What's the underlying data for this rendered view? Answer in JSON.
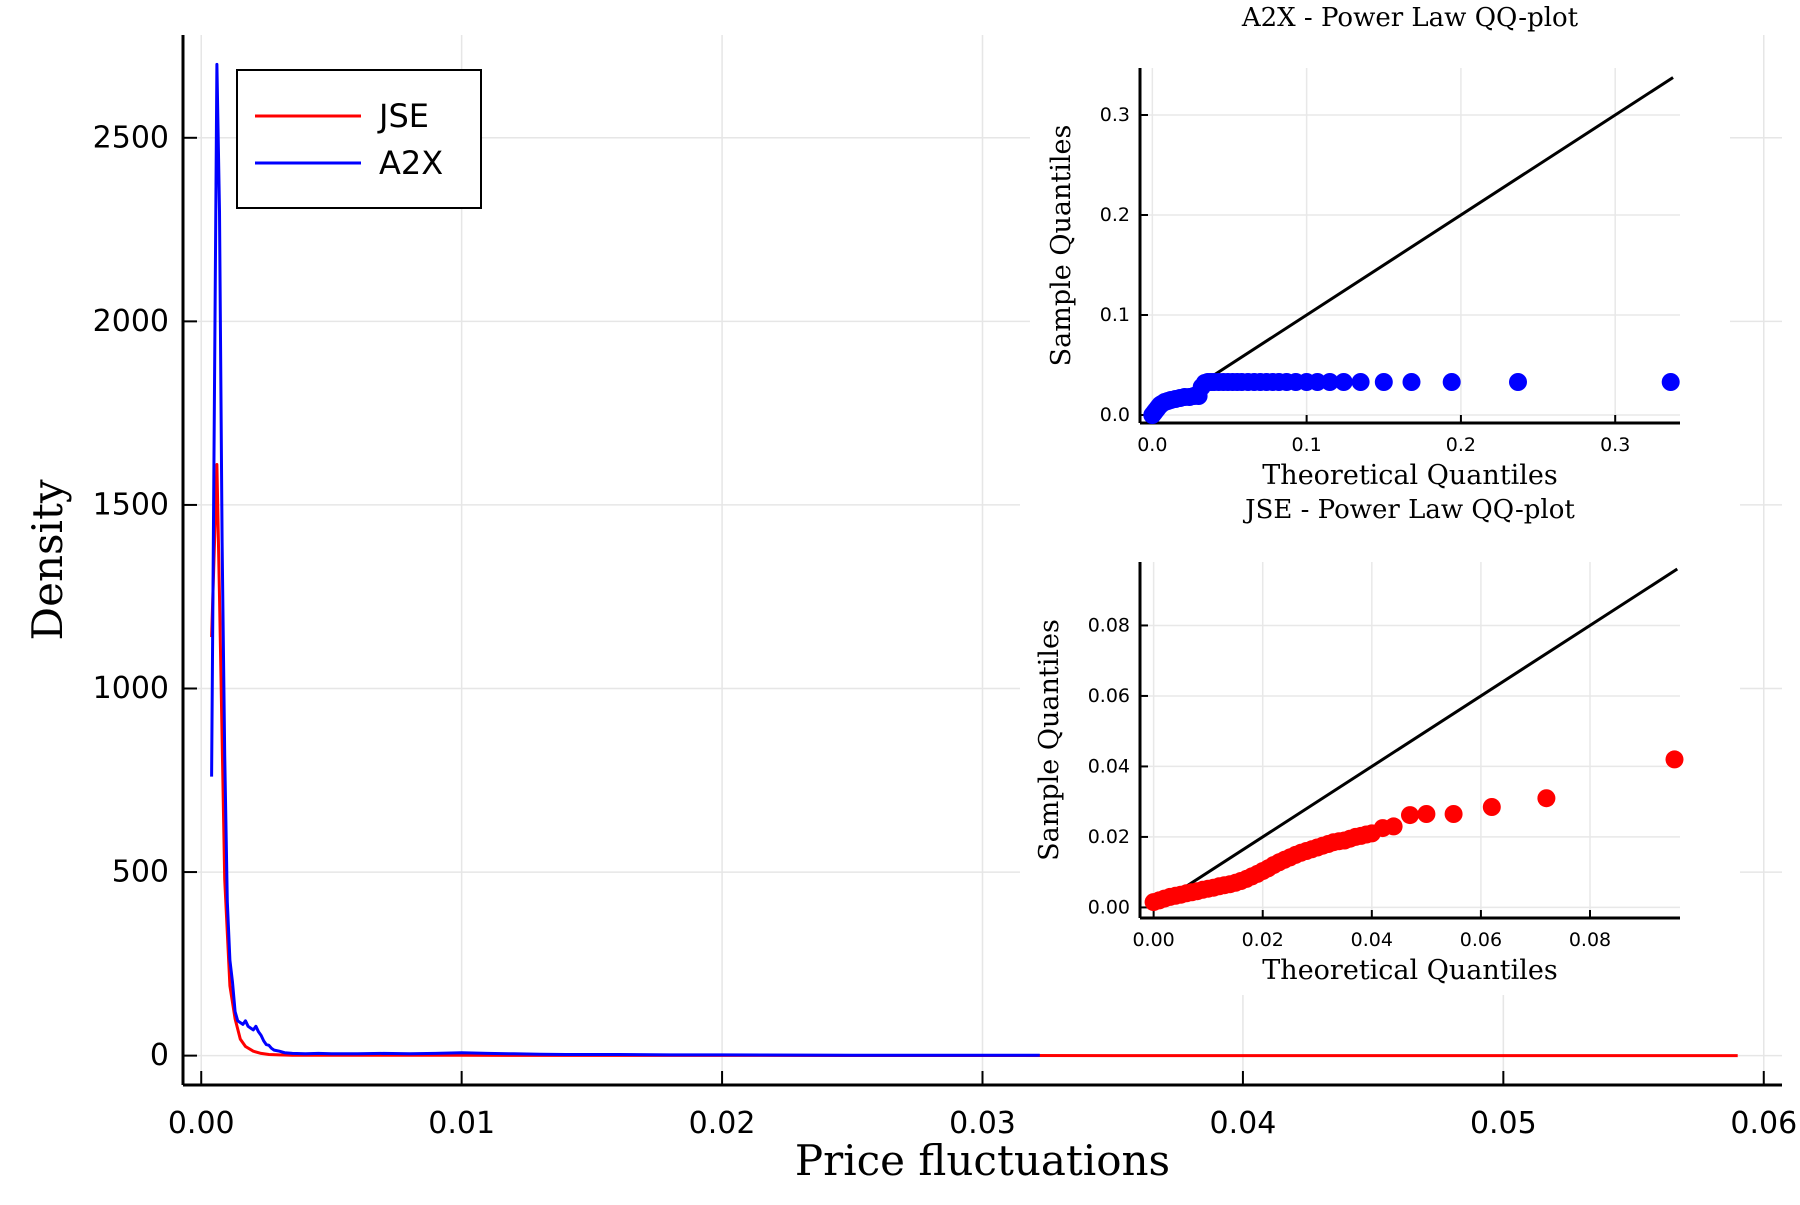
{
  "chart_data": [
    {
      "type": "line",
      "xlabel": "Price fluctuations",
      "ylabel": "Density",
      "xlim": [
        -0.0007,
        0.0607
      ],
      "ylim": [
        -80,
        2780
      ],
      "xticks": [
        0.0,
        0.01,
        0.02,
        0.03,
        0.04,
        0.05,
        0.06
      ],
      "xtick_labels": [
        "0.00",
        "0.01",
        "0.02",
        "0.03",
        "0.04",
        "0.05",
        "0.06"
      ],
      "yticks": [
        0,
        500,
        1000,
        1500,
        2000,
        2500
      ],
      "ytick_labels": [
        "0",
        "500",
        "1000",
        "1500",
        "2000",
        "2500"
      ],
      "grid": true,
      "legend_position": "top-left",
      "series": [
        {
          "name": "JSE",
          "color": "#ff0000",
          "x": [
            0.0004,
            0.0006,
            0.0007,
            0.0009,
            0.0011,
            0.0013,
            0.0015,
            0.0017,
            0.002,
            0.0023,
            0.0026,
            0.003,
            0.0035,
            0.004,
            0.006,
            0.008,
            0.01,
            0.015,
            0.02,
            0.025,
            0.03,
            0.035,
            0.04,
            0.045,
            0.05,
            0.055,
            0.059
          ],
          "y": [
            1140,
            1610,
            1250,
            480,
            190,
            100,
            45,
            25,
            12,
            6,
            3,
            2,
            1,
            1,
            1,
            1,
            1,
            0.5,
            0.5,
            0.3,
            0.3,
            0.2,
            0.2,
            0.1,
            0.1,
            0.1,
            0.1
          ]
        },
        {
          "name": "A2X",
          "color": "#0000ff",
          "x": [
            0.0004,
            0.0006,
            0.0007,
            0.0008,
            0.0009,
            0.001,
            0.0011,
            0.0012,
            0.0013,
            0.0014,
            0.0015,
            0.0016,
            0.0017,
            0.0018,
            0.0019,
            0.002,
            0.0021,
            0.0022,
            0.0023,
            0.0024,
            0.0025,
            0.0026,
            0.0027,
            0.0028,
            0.003,
            0.0032,
            0.0035,
            0.004,
            0.0045,
            0.005,
            0.006,
            0.007,
            0.008,
            0.009,
            0.01,
            0.011,
            0.012,
            0.013,
            0.014,
            0.016,
            0.018,
            0.02,
            0.025,
            0.03,
            0.0322
          ],
          "y": [
            760,
            2700,
            2300,
            1400,
            820,
            420,
            260,
            200,
            120,
            95,
            90,
            85,
            95,
            80,
            75,
            70,
            80,
            65,
            55,
            40,
            30,
            28,
            20,
            15,
            12,
            8,
            6,
            5,
            6,
            5,
            5,
            6,
            5,
            6,
            8,
            6,
            5,
            4,
            3,
            3,
            2,
            2,
            1,
            1,
            1
          ]
        }
      ]
    },
    {
      "type": "scatter",
      "title": "A2X - Power Law QQ-plot",
      "xlabel": "Theoretical Quantiles",
      "ylabel": "Sample Quantiles",
      "xlim": [
        -0.008,
        0.342
      ],
      "ylim": [
        -0.008,
        0.347
      ],
      "xticks": [
        0.0,
        0.1,
        0.2,
        0.3
      ],
      "xtick_labels": [
        "0.0",
        "0.1",
        "0.2",
        "0.3"
      ],
      "yticks": [
        0.0,
        0.1,
        0.2,
        0.3
      ],
      "ytick_labels": [
        "0.0",
        "0.1",
        "0.2",
        "0.3"
      ],
      "grid": true,
      "reference_line": {
        "x": [
          0.0,
          0.3375
        ],
        "y": [
          0.0,
          0.3375
        ],
        "color": "#000000"
      },
      "series": [
        {
          "color": "#0000ff",
          "x": [
            0.0,
            0.001,
            0.002,
            0.003,
            0.004,
            0.005,
            0.006,
            0.008,
            0.01,
            0.012,
            0.015,
            0.018,
            0.021,
            0.024,
            0.027,
            0.03,
            0.032,
            0.034,
            0.036,
            0.038,
            0.04,
            0.043,
            0.046,
            0.049,
            0.052,
            0.055,
            0.058,
            0.062,
            0.066,
            0.07,
            0.074,
            0.078,
            0.082,
            0.087,
            0.093,
            0.1,
            0.107,
            0.115,
            0.124,
            0.135,
            0.15,
            0.168,
            0.194,
            0.237,
            0.336
          ],
          "y": [
            0.0,
            0.002,
            0.004,
            0.006,
            0.008,
            0.01,
            0.011,
            0.013,
            0.014,
            0.015,
            0.016,
            0.017,
            0.018,
            0.018,
            0.019,
            0.019,
            0.028,
            0.032,
            0.033,
            0.033,
            0.033,
            0.033,
            0.033,
            0.033,
            0.033,
            0.033,
            0.033,
            0.033,
            0.033,
            0.033,
            0.033,
            0.033,
            0.033,
            0.033,
            0.033,
            0.033,
            0.033,
            0.033,
            0.033,
            0.033,
            0.033,
            0.033,
            0.033,
            0.033,
            0.033
          ]
        }
      ]
    },
    {
      "type": "scatter",
      "title": "JSE - Power Law QQ-plot",
      "xlabel": "Theoretical Quantiles",
      "ylabel": "Sample Quantiles",
      "xlim": [
        -0.0025,
        0.0965
      ],
      "ylim": [
        -0.003,
        0.098
      ],
      "xticks": [
        0.0,
        0.02,
        0.04,
        0.06,
        0.08
      ],
      "xtick_labels": [
        "0.00",
        "0.02",
        "0.04",
        "0.06",
        "0.08"
      ],
      "yticks": [
        0.0,
        0.02,
        0.04,
        0.06,
        0.08
      ],
      "ytick_labels": [
        "0.00",
        "0.02",
        "0.04",
        "0.06",
        "0.08"
      ],
      "grid": true,
      "reference_line": {
        "x": [
          0.0,
          0.096
        ],
        "y": [
          0.0,
          0.096
        ],
        "color": "#000000"
      },
      "series": [
        {
          "color": "#ff0000",
          "x": [
            0.0,
            0.001,
            0.002,
            0.003,
            0.004,
            0.005,
            0.006,
            0.007,
            0.008,
            0.009,
            0.01,
            0.011,
            0.012,
            0.013,
            0.014,
            0.015,
            0.016,
            0.017,
            0.018,
            0.019,
            0.02,
            0.021,
            0.022,
            0.023,
            0.024,
            0.025,
            0.026,
            0.027,
            0.028,
            0.029,
            0.03,
            0.031,
            0.032,
            0.033,
            0.034,
            0.035,
            0.036,
            0.037,
            0.038,
            0.039,
            0.04,
            0.042,
            0.044,
            0.047,
            0.05,
            0.055,
            0.062,
            0.072,
            0.0955
          ],
          "y": [
            0.0015,
            0.002,
            0.0025,
            0.003,
            0.0033,
            0.0036,
            0.004,
            0.0043,
            0.0046,
            0.005,
            0.0053,
            0.0056,
            0.006,
            0.0063,
            0.0066,
            0.007,
            0.0075,
            0.0081,
            0.0088,
            0.0095,
            0.0103,
            0.0111,
            0.012,
            0.0128,
            0.0135,
            0.0142,
            0.0149,
            0.0155,
            0.016,
            0.0165,
            0.017,
            0.0175,
            0.018,
            0.0185,
            0.0188,
            0.019,
            0.0195,
            0.02,
            0.0203,
            0.0207,
            0.021,
            0.0225,
            0.023,
            0.0262,
            0.0265,
            0.0265,
            0.0285,
            0.031,
            0.042
          ]
        }
      ]
    }
  ]
}
